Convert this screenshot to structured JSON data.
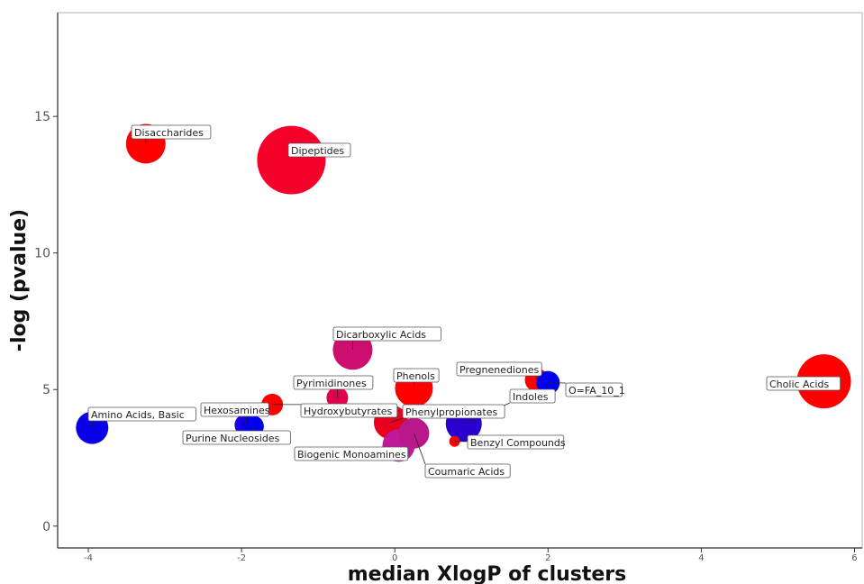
{
  "chart_data": {
    "type": "scatter",
    "xlabel": "median XlogP of clusters",
    "ylabel": "-log (pvalue)",
    "xlim": [
      -4.4,
      6.1
    ],
    "ylim": [
      -0.8,
      18.8
    ],
    "x_ticks": [
      -4,
      -2,
      0,
      2,
      4,
      6
    ],
    "x_tick_labels": [
      "-4",
      "-2",
      "0",
      "2",
      "4",
      "6"
    ],
    "y_ticks": [
      0,
      5,
      10,
      15
    ],
    "y_tick_labels": [
      "0",
      "5",
      "10",
      "15"
    ],
    "grid": false,
    "points": [
      {
        "label": "Disaccharides",
        "x": -3.25,
        "y": 14.0,
        "size": 22,
        "color": "#ff0000"
      },
      {
        "label": "Dipeptides",
        "x": -1.35,
        "y": 13.4,
        "size": 38,
        "color": "#f5002a"
      },
      {
        "label": "Dicarboxylic Acids",
        "x": -0.55,
        "y": 6.45,
        "size": 22,
        "color": "#cc0e6e"
      },
      {
        "label": "Pyrimidinones",
        "x": -0.75,
        "y": 4.7,
        "size": 12,
        "color": "#e0004e"
      },
      {
        "label": "Hydroxybutyrates",
        "x": -1.6,
        "y": 4.45,
        "size": 12,
        "color": "#ff0000"
      },
      {
        "label": "Phenols",
        "x": 0.25,
        "y": 5.05,
        "size": 21,
        "color": "#ff0000"
      },
      {
        "label": "Pregnenediones",
        "x": 1.85,
        "y": 5.35,
        "size": 13,
        "color": "#ff0000"
      },
      {
        "label": "O=FA_10_1",
        "x": 2.0,
        "y": 5.25,
        "size": 13,
        "color": "#0000ee"
      },
      {
        "label": "Cholic Acids",
        "x": 5.6,
        "y": 5.3,
        "size": 30,
        "color": "#ff0000"
      },
      {
        "label": "Indoles",
        "x": 0.9,
        "y": 3.75,
        "size": 20,
        "color": "#2a00d0"
      },
      {
        "label": "Phenylpropionates",
        "x": -0.05,
        "y": 3.8,
        "size": 19,
        "color": "#e8001e"
      },
      {
        "label": "Benzyl Compounds",
        "x": 0.78,
        "y": 3.1,
        "size": 6,
        "color": "#ff0000"
      },
      {
        "label": "Coumaric Acids",
        "x": 0.25,
        "y": 3.4,
        "size": 17,
        "color": "#b8188a"
      },
      {
        "label": "Biogenic Monoamines",
        "x": 0.05,
        "y": 2.95,
        "size": 18,
        "color": "#c0189a"
      },
      {
        "label": "Hexosamines",
        "x": -1.95,
        "y": 3.7,
        "size": 12,
        "color": "#1800e6"
      },
      {
        "label": "Purine Nucleosides",
        "x": -1.85,
        "y": 3.65,
        "size": 12,
        "color": "#0000ee"
      },
      {
        "label": "Amino Acids, Basic",
        "x": -3.95,
        "y": 3.6,
        "size": 18,
        "color": "#0a00e8"
      }
    ]
  }
}
